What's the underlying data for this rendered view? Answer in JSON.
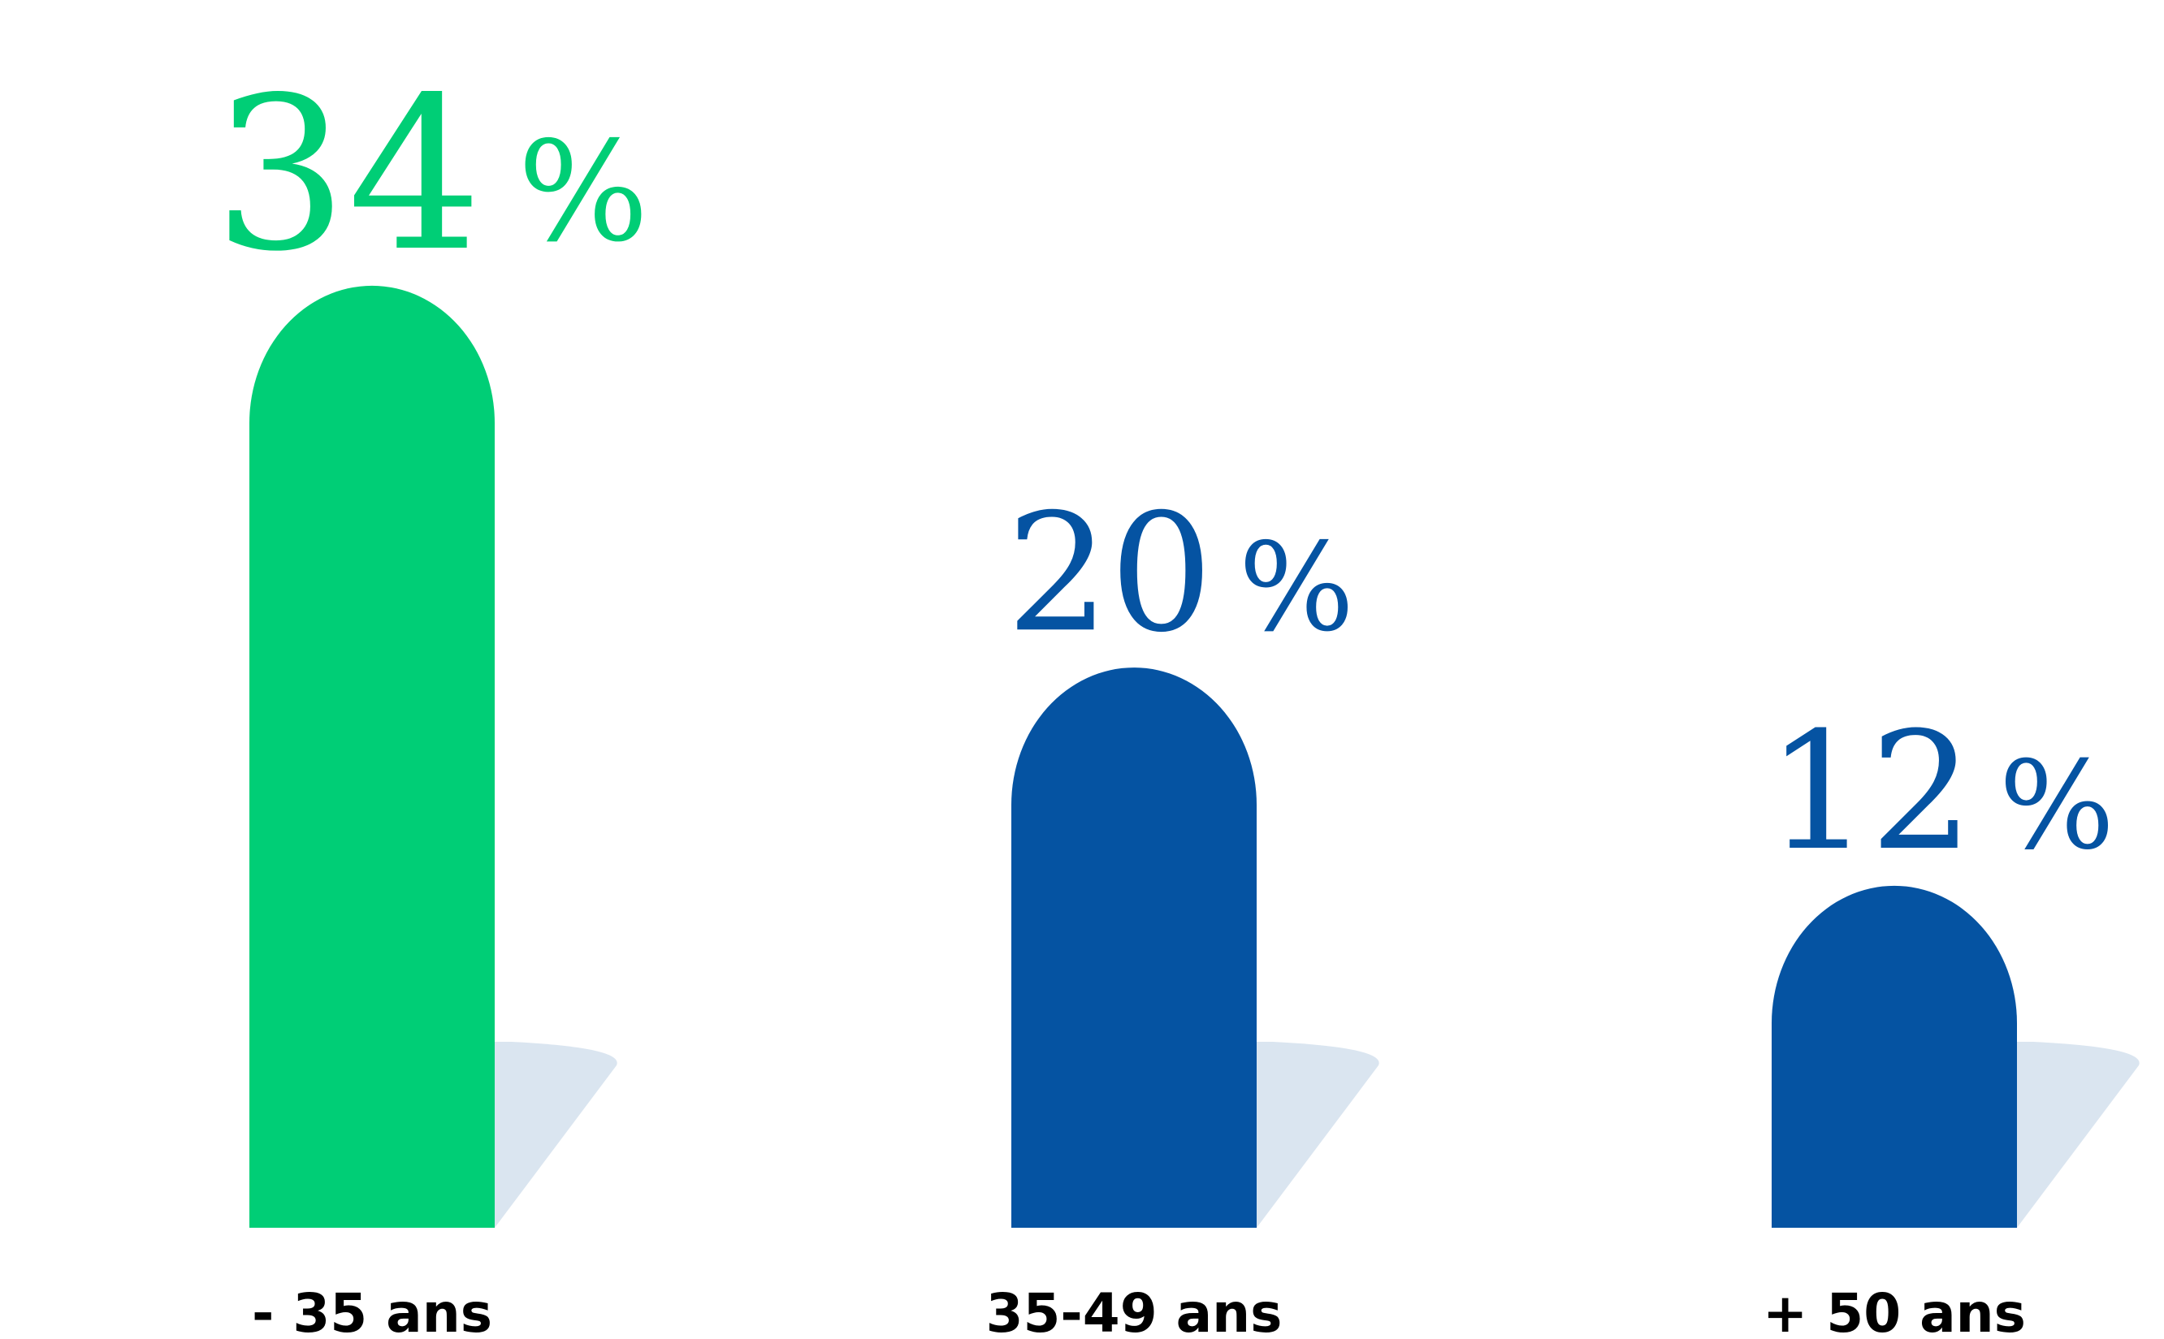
{
  "chart_data": {
    "type": "bar",
    "categories": [
      "- 35 ans",
      "35-49 ans",
      "+ 50 ans"
    ],
    "values": [
      34,
      20,
      12
    ],
    "value_labels": [
      "34",
      "20",
      "12"
    ],
    "unit": "%",
    "ylim": [
      0,
      34
    ],
    "grid": false,
    "legend": "none",
    "colors": [
      "#00ce76",
      "#0553a2",
      "#0553a2"
    ],
    "shadow_color": "#dae5f0",
    "label_color": "#000000"
  }
}
